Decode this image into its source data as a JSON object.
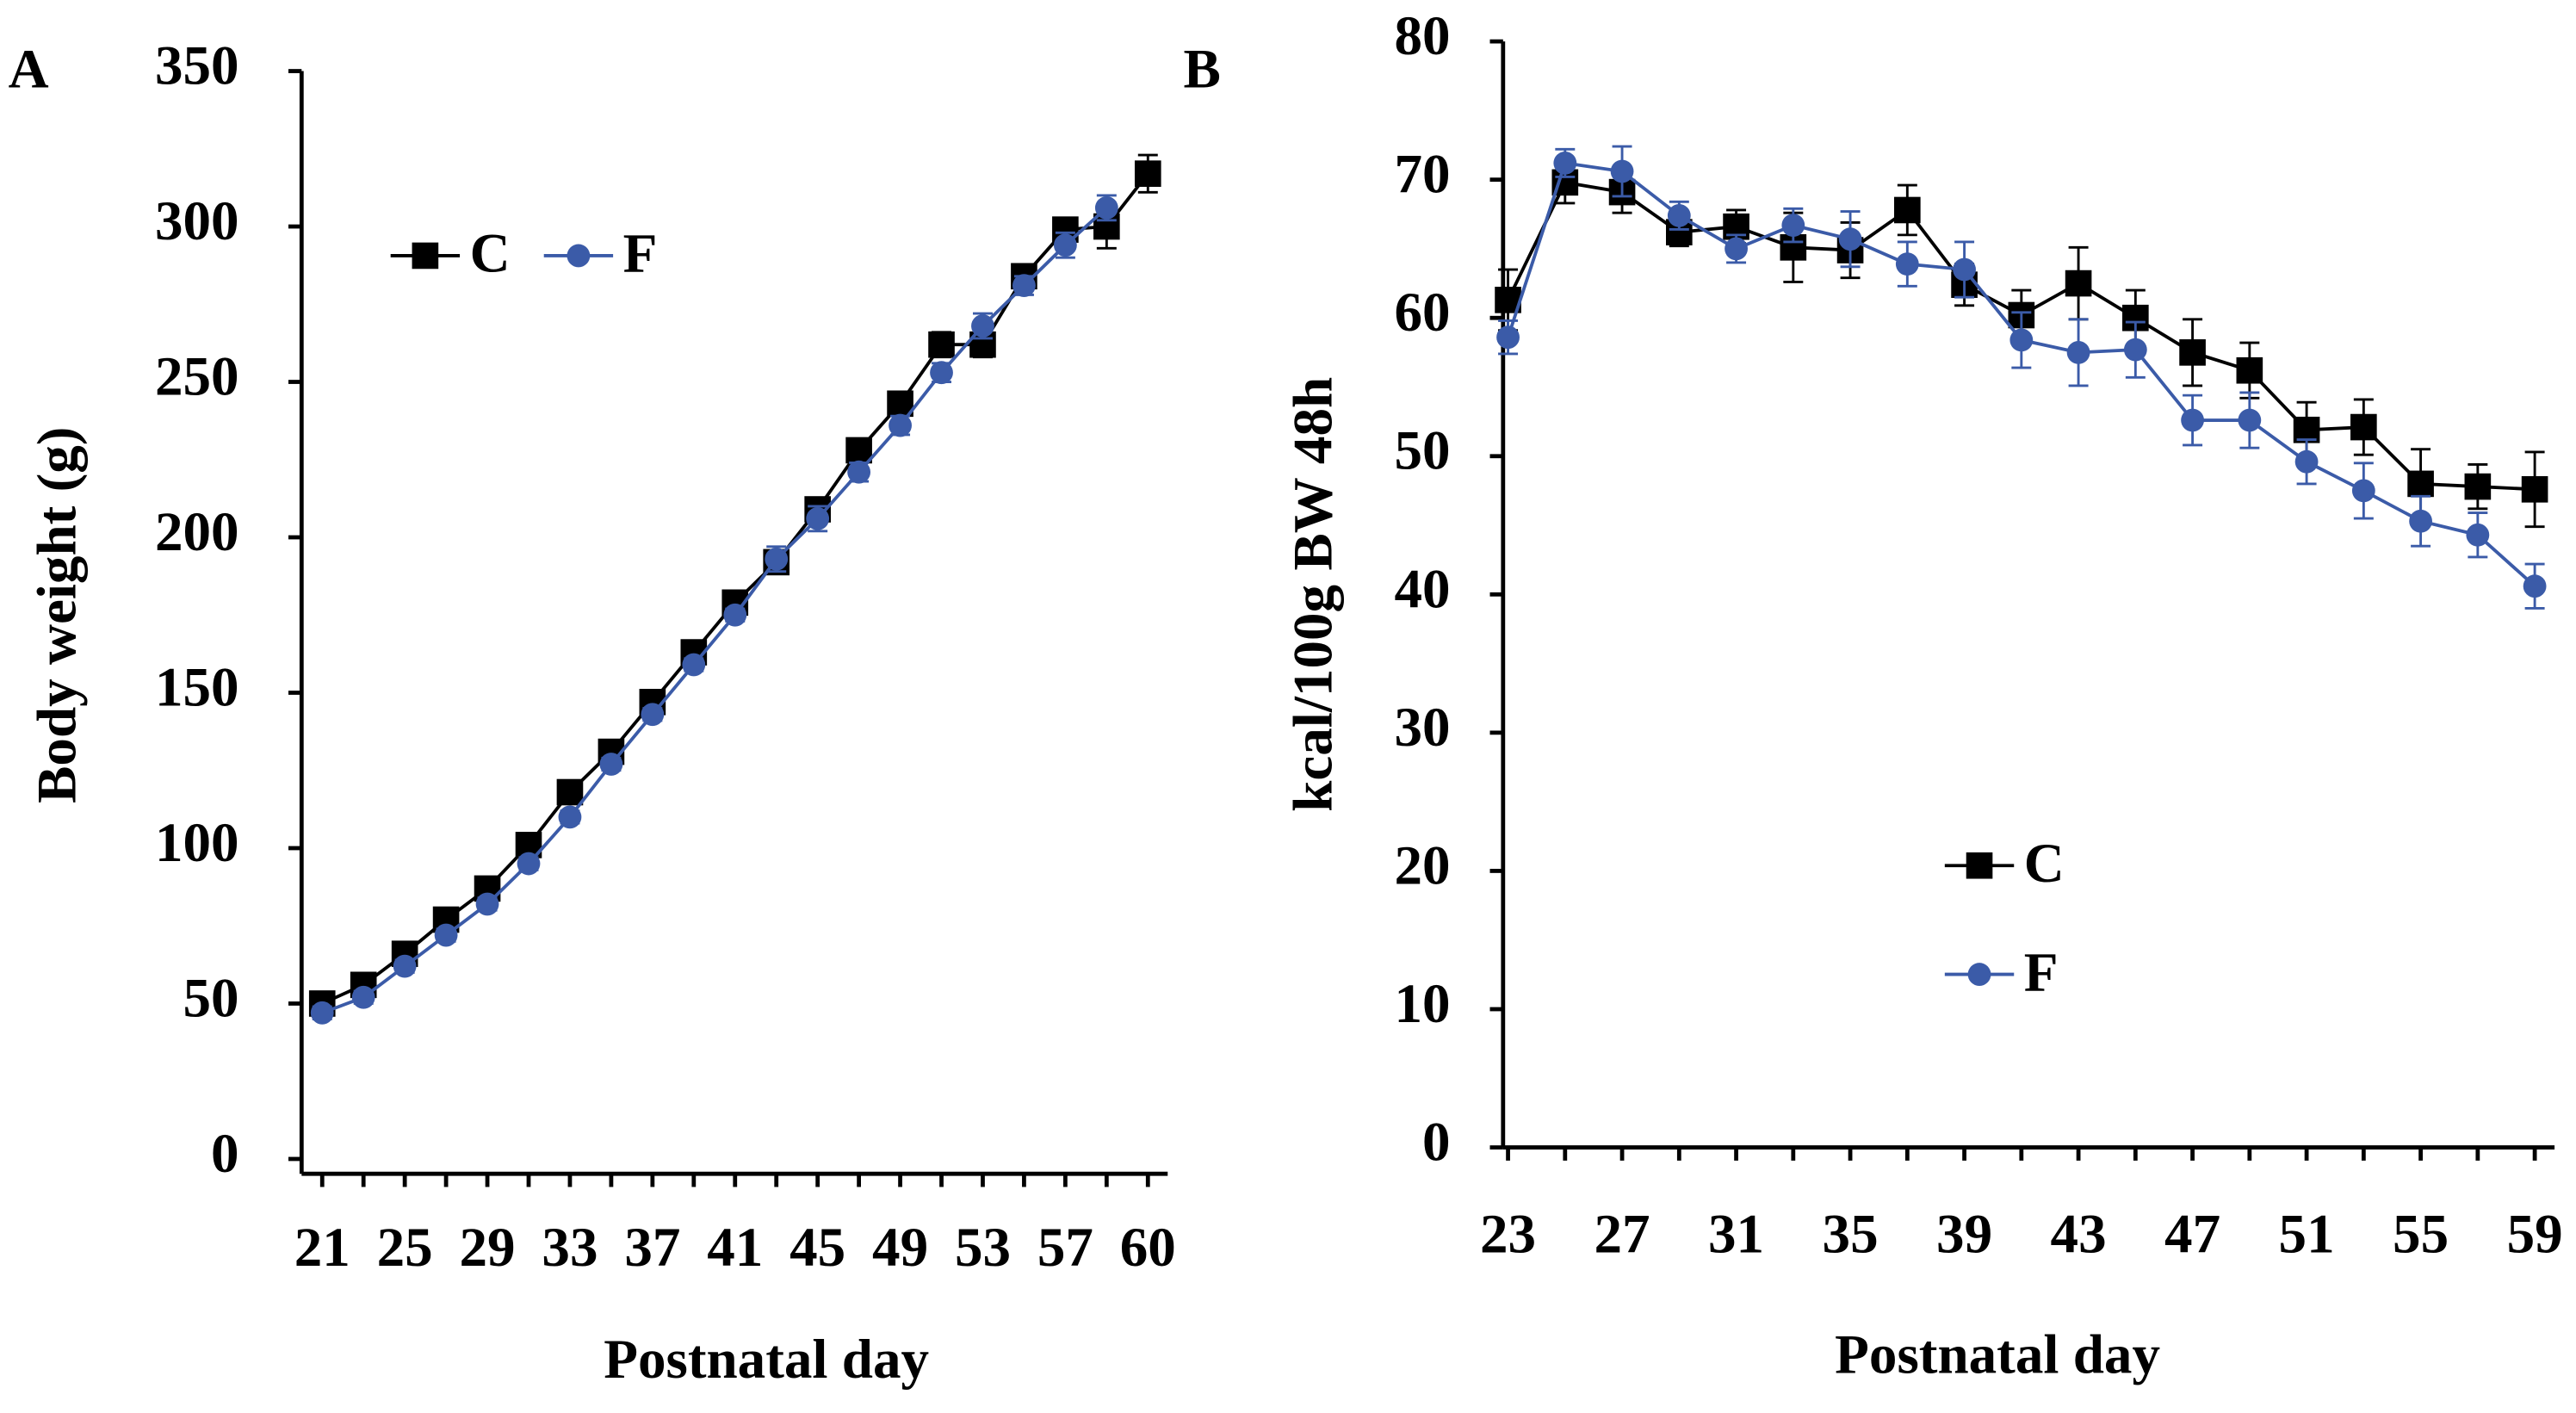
{
  "chart_data": [
    {
      "type": "line",
      "label": "A",
      "ylabel": "Body weight (g)",
      "xlabel": "Postnatal day",
      "categories": [
        21,
        null,
        25,
        null,
        29,
        null,
        33,
        null,
        37,
        null,
        41,
        null,
        45,
        null,
        49,
        null,
        53,
        null,
        57,
        null,
        60
      ],
      "series": [
        {
          "name": "C",
          "color": "#000000",
          "marker": "square",
          "values": [
            50,
            56,
            66,
            77,
            87,
            101,
            118,
            131,
            147,
            163,
            179,
            192,
            209,
            228,
            243,
            262,
            262,
            284,
            299,
            300,
            317
          ],
          "errors": [
            2,
            2,
            2,
            2,
            2,
            2,
            2,
            2,
            2,
            2,
            2,
            2,
            3,
            3,
            3,
            4,
            4,
            3,
            3,
            7,
            6
          ]
        },
        {
          "name": "F",
          "color": "#3b5ba8",
          "marker": "circle",
          "values": [
            47,
            52,
            62,
            72,
            82,
            95,
            110,
            127,
            143,
            159,
            175,
            193,
            206,
            221,
            236,
            253,
            268,
            281,
            294,
            306,
            null
          ],
          "errors": [
            2,
            2,
            2,
            2,
            2,
            2,
            2,
            2,
            2,
            2,
            2,
            4,
            4,
            3,
            3,
            3,
            4,
            3,
            4,
            4,
            null
          ]
        }
      ],
      "ylim": [
        0,
        350
      ],
      "yticks": [
        0,
        50,
        100,
        150,
        200,
        250,
        300,
        350
      ],
      "legend": "upper left"
    },
    {
      "type": "line",
      "label": "B",
      "ylabel": "kcal/100g BW 48h",
      "xlabel": "Postnatal day",
      "categories": [
        23,
        null,
        27,
        null,
        31,
        null,
        35,
        null,
        39,
        null,
        43,
        null,
        47,
        null,
        51,
        null,
        55,
        null,
        59
      ],
      "series": [
        {
          "name": "C",
          "color": "#000000",
          "marker": "square",
          "values": [
            61.3,
            69.8,
            69.1,
            66.2,
            66.6,
            65.1,
            64.9,
            67.8,
            62.4,
            60.2,
            62.5,
            60.0,
            57.5,
            56.2,
            51.9,
            52.1,
            48.0,
            47.8,
            47.6
          ],
          "errors": [
            2.2,
            1.5,
            1.5,
            1.0,
            1.2,
            2.5,
            2.0,
            1.8,
            1.5,
            1.8,
            2.6,
            2.0,
            2.4,
            2.0,
            2.0,
            2.0,
            2.5,
            1.6,
            2.7
          ]
        },
        {
          "name": "F",
          "color": "#3b5ba8",
          "marker": "circle",
          "values": [
            58.6,
            71.2,
            70.6,
            67.4,
            65.0,
            66.7,
            65.7,
            63.9,
            63.5,
            58.4,
            57.5,
            57.7,
            52.6,
            52.6,
            49.6,
            47.5,
            45.3,
            44.3,
            40.6
          ],
          "errors": [
            1.2,
            1.0,
            1.8,
            1.0,
            1.0,
            1.2,
            2.0,
            1.6,
            2.0,
            2.0,
            2.4,
            2.0,
            1.8,
            2.0,
            1.6,
            2.0,
            1.8,
            1.6,
            1.6
          ]
        }
      ],
      "ylim": [
        0,
        80
      ],
      "yticks": [
        0,
        10,
        20,
        30,
        40,
        50,
        60,
        70,
        80
      ],
      "legend": "center"
    }
  ]
}
